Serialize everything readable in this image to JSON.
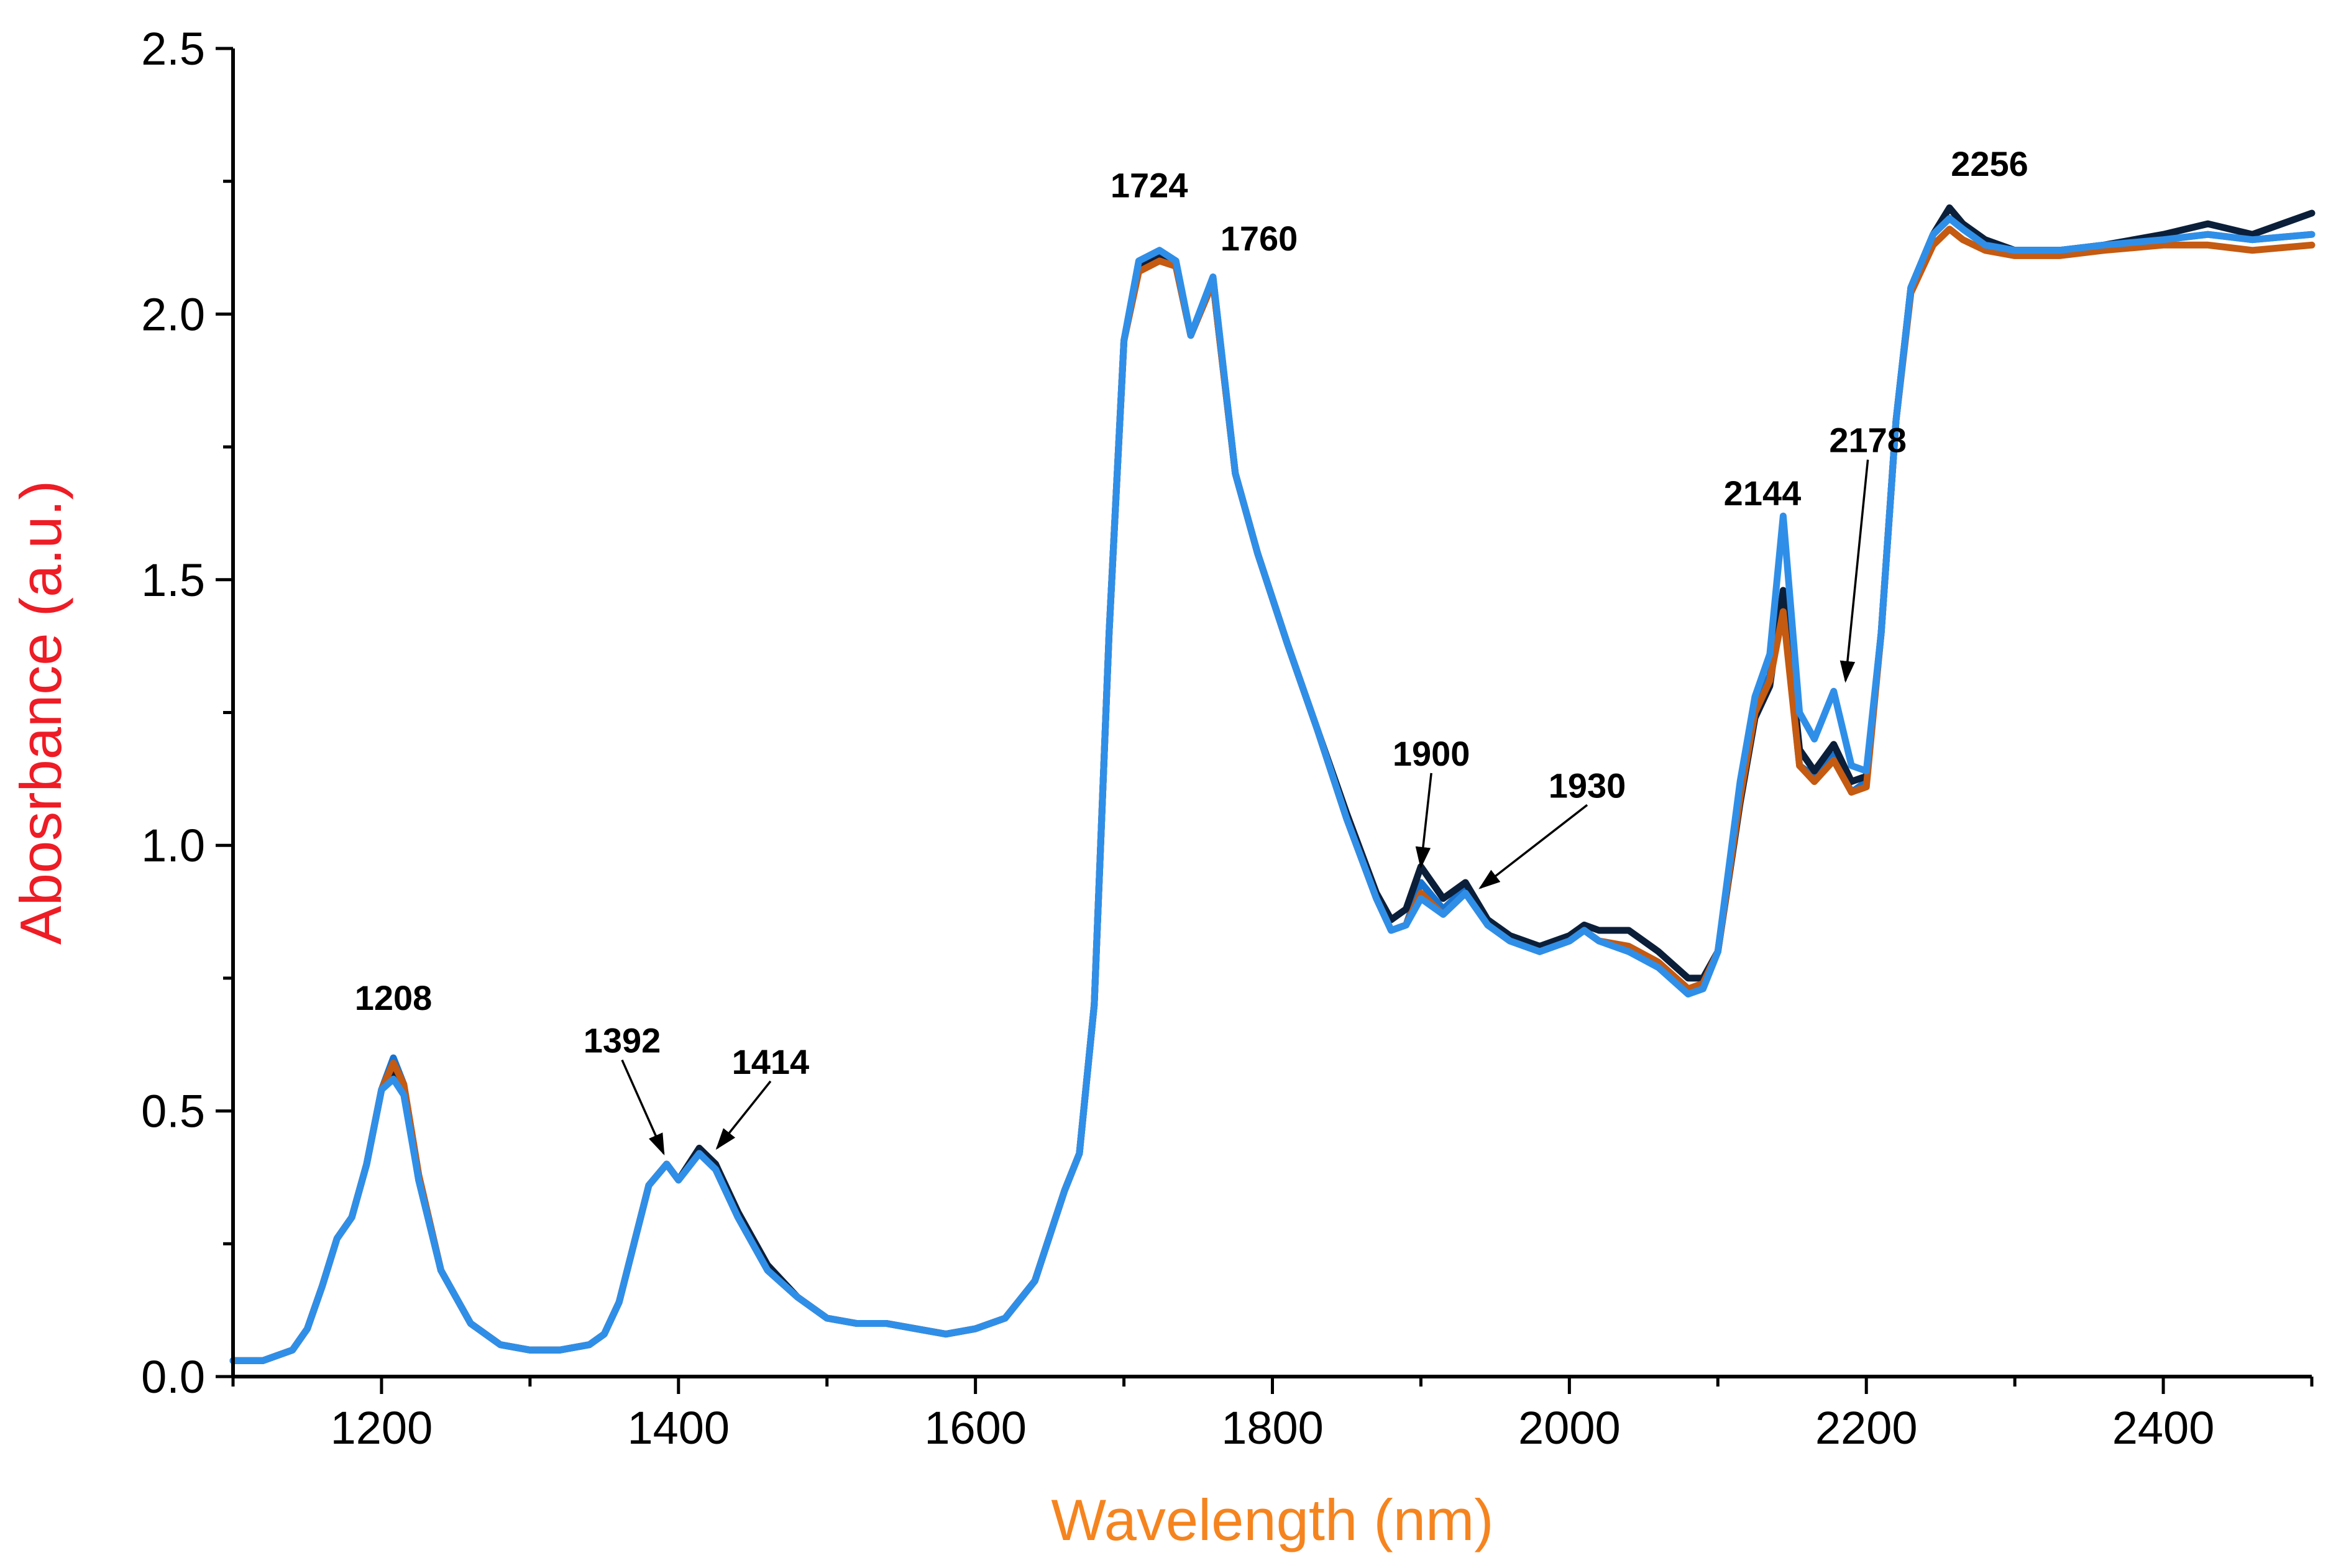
{
  "chart_data": {
    "type": "line",
    "title": "",
    "xlabel": "Wavelength (nm)",
    "ylabel": "Abosrbance (a.u.)",
    "xlabel_color": "#F5841F",
    "ylabel_color": "#EE1C25",
    "xlim": [
      1100,
      2500
    ],
    "ylim": [
      0.0,
      2.5
    ],
    "x_ticks": [
      1200,
      1400,
      1600,
      1800,
      2000,
      2200,
      2400
    ],
    "y_ticks": [
      0.0,
      0.5,
      1.0,
      1.5,
      2.0,
      2.5
    ],
    "y_tick_labels": [
      "0.0",
      "0.5",
      "1.0",
      "1.5",
      "2.0",
      "2.5"
    ],
    "grid": false,
    "legend": "none",
    "x": [
      1100,
      1120,
      1140,
      1150,
      1160,
      1170,
      1180,
      1190,
      1200,
      1208,
      1215,
      1225,
      1240,
      1260,
      1280,
      1300,
      1320,
      1340,
      1350,
      1360,
      1370,
      1380,
      1392,
      1400,
      1414,
      1425,
      1440,
      1460,
      1480,
      1500,
      1520,
      1540,
      1560,
      1580,
      1600,
      1620,
      1640,
      1660,
      1670,
      1680,
      1690,
      1700,
      1710,
      1724,
      1735,
      1745,
      1760,
      1775,
      1790,
      1810,
      1830,
      1850,
      1870,
      1880,
      1890,
      1900,
      1915,
      1930,
      1945,
      1960,
      1980,
      2000,
      2010,
      2020,
      2040,
      2060,
      2080,
      2090,
      2100,
      2115,
      2125,
      2135,
      2144,
      2155,
      2165,
      2178,
      2190,
      2200,
      2210,
      2220,
      2230,
      2245,
      2256,
      2265,
      2280,
      2300,
      2330,
      2360,
      2400,
      2430,
      2460,
      2500
    ],
    "series": [
      {
        "values": [
          0.03,
          0.03,
          0.05,
          0.09,
          0.17,
          0.26,
          0.3,
          0.4,
          0.54,
          0.6,
          0.55,
          0.38,
          0.2,
          0.1,
          0.06,
          0.05,
          0.05,
          0.06,
          0.08,
          0.14,
          0.25,
          0.36,
          0.4,
          0.37,
          0.42,
          0.39,
          0.3,
          0.2,
          0.15,
          0.11,
          0.1,
          0.1,
          0.09,
          0.08,
          0.09,
          0.11,
          0.18,
          0.35,
          0.42,
          0.7,
          1.4,
          1.95,
          2.1,
          2.12,
          2.1,
          1.96,
          2.07,
          1.7,
          1.55,
          1.38,
          1.22,
          1.05,
          0.9,
          0.84,
          0.85,
          0.93,
          0.88,
          0.92,
          0.85,
          0.82,
          0.8,
          0.82,
          0.84,
          0.82,
          0.8,
          0.77,
          0.72,
          0.73,
          0.8,
          1.1,
          1.26,
          1.32,
          1.45,
          1.15,
          1.13,
          1.17,
          1.1,
          1.12,
          1.4,
          1.8,
          2.05,
          2.15,
          2.18,
          2.16,
          2.13,
          2.12,
          2.12,
          2.13,
          2.14,
          2.15,
          2.14,
          2.15
        ],
        "color": "#1874D2"
      },
      {
        "values": [
          0.03,
          0.03,
          0.05,
          0.09,
          0.17,
          0.26,
          0.3,
          0.4,
          0.54,
          0.58,
          0.54,
          0.37,
          0.2,
          0.1,
          0.06,
          0.05,
          0.05,
          0.06,
          0.08,
          0.14,
          0.25,
          0.36,
          0.4,
          0.37,
          0.43,
          0.4,
          0.31,
          0.21,
          0.15,
          0.11,
          0.1,
          0.1,
          0.09,
          0.08,
          0.09,
          0.11,
          0.18,
          0.35,
          0.42,
          0.7,
          1.4,
          1.95,
          2.09,
          2.11,
          2.09,
          1.96,
          2.06,
          1.7,
          1.55,
          1.38,
          1.22,
          1.06,
          0.91,
          0.86,
          0.88,
          0.96,
          0.9,
          0.93,
          0.86,
          0.83,
          0.81,
          0.83,
          0.85,
          0.84,
          0.84,
          0.8,
          0.75,
          0.75,
          0.8,
          1.08,
          1.24,
          1.3,
          1.48,
          1.18,
          1.14,
          1.19,
          1.12,
          1.13,
          1.4,
          1.8,
          2.05,
          2.15,
          2.2,
          2.17,
          2.14,
          2.12,
          2.12,
          2.13,
          2.15,
          2.17,
          2.15,
          2.19
        ],
        "color": "#0B1F3A"
      },
      {
        "values": [
          0.03,
          0.03,
          0.05,
          0.09,
          0.17,
          0.26,
          0.3,
          0.4,
          0.54,
          0.59,
          0.55,
          0.38,
          0.2,
          0.1,
          0.06,
          0.05,
          0.05,
          0.06,
          0.08,
          0.14,
          0.25,
          0.36,
          0.4,
          0.37,
          0.42,
          0.39,
          0.3,
          0.2,
          0.15,
          0.11,
          0.1,
          0.1,
          0.09,
          0.08,
          0.09,
          0.11,
          0.18,
          0.35,
          0.42,
          0.7,
          1.4,
          1.95,
          2.08,
          2.1,
          2.09,
          1.96,
          2.06,
          1.7,
          1.55,
          1.38,
          1.22,
          1.05,
          0.9,
          0.84,
          0.85,
          0.91,
          0.87,
          0.91,
          0.85,
          0.82,
          0.8,
          0.82,
          0.84,
          0.82,
          0.81,
          0.78,
          0.73,
          0.74,
          0.8,
          1.09,
          1.25,
          1.31,
          1.44,
          1.15,
          1.12,
          1.16,
          1.1,
          1.11,
          1.4,
          1.8,
          2.04,
          2.13,
          2.16,
          2.14,
          2.12,
          2.11,
          2.11,
          2.12,
          2.13,
          2.13,
          2.12,
          2.13
        ],
        "color": "#C55A11"
      },
      {
        "values": [
          0.03,
          0.03,
          0.05,
          0.09,
          0.17,
          0.26,
          0.3,
          0.4,
          0.54,
          0.56,
          0.53,
          0.37,
          0.2,
          0.1,
          0.06,
          0.05,
          0.05,
          0.06,
          0.08,
          0.14,
          0.25,
          0.36,
          0.4,
          0.37,
          0.42,
          0.39,
          0.3,
          0.2,
          0.15,
          0.11,
          0.1,
          0.1,
          0.09,
          0.08,
          0.09,
          0.11,
          0.18,
          0.35,
          0.42,
          0.7,
          1.4,
          1.95,
          2.1,
          2.12,
          2.1,
          1.96,
          2.07,
          1.7,
          1.55,
          1.38,
          1.22,
          1.05,
          0.9,
          0.84,
          0.85,
          0.9,
          0.87,
          0.91,
          0.85,
          0.82,
          0.8,
          0.82,
          0.84,
          0.82,
          0.8,
          0.77,
          0.72,
          0.73,
          0.8,
          1.12,
          1.28,
          1.36,
          1.62,
          1.25,
          1.2,
          1.29,
          1.15,
          1.14,
          1.4,
          1.8,
          2.05,
          2.15,
          2.18,
          2.16,
          2.13,
          2.12,
          2.12,
          2.13,
          2.14,
          2.15,
          2.14,
          2.15
        ],
        "color": "#2F8FE8"
      }
    ],
    "annotations": [
      {
        "text": "1208",
        "x": 1208,
        "y": 0.69,
        "arrow": false
      },
      {
        "text": "1392",
        "x": 1362,
        "y": 0.61,
        "arrow": true,
        "ax": 1390,
        "ay": 0.42
      },
      {
        "text": "1414",
        "x": 1462,
        "y": 0.57,
        "arrow": true,
        "ax": 1426,
        "ay": 0.43
      },
      {
        "text": "1724",
        "x": 1717,
        "y": 2.22,
        "arrow": false
      },
      {
        "text": "1760",
        "x": 1791,
        "y": 2.12,
        "arrow": false
      },
      {
        "text": "1900",
        "x": 1907,
        "y": 1.15,
        "arrow": true,
        "ax": 1900,
        "ay": 0.96
      },
      {
        "text": "1930",
        "x": 2012,
        "y": 1.09,
        "arrow": true,
        "ax": 1940,
        "ay": 0.92
      },
      {
        "text": "2144",
        "x": 2130,
        "y": 1.64,
        "arrow": false
      },
      {
        "text": "2178",
        "x": 2201,
        "y": 1.74,
        "arrow": true,
        "ax": 2186,
        "ay": 1.31
      },
      {
        "text": "2256",
        "x": 2283,
        "y": 2.26,
        "arrow": false
      }
    ]
  }
}
